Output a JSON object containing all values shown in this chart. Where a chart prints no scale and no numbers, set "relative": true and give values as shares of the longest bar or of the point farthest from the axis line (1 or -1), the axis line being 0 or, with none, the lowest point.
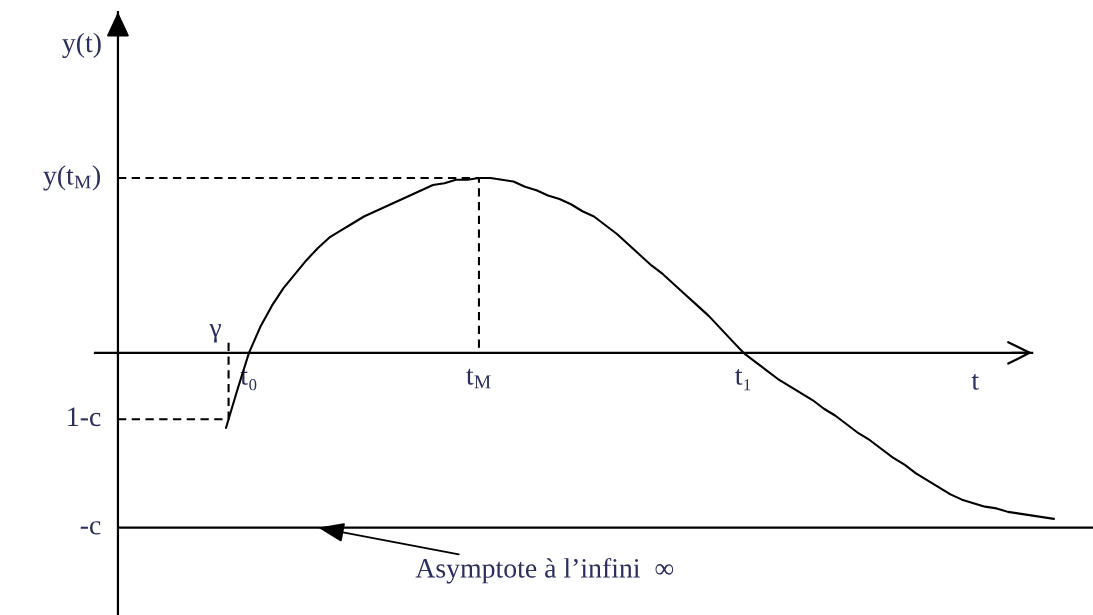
{
  "chart_data": {
    "type": "line",
    "relative": true,
    "color": "#000000",
    "categories": [
      null,
      null,
      "t₀",
      null,
      null,
      null,
      null,
      null,
      null,
      null,
      null,
      null,
      null,
      null,
      null,
      null,
      null,
      null,
      null,
      null,
      null,
      null,
      "t$_{M}$",
      null,
      null,
      null,
      null,
      null,
      null,
      null,
      null,
      null,
      null,
      null,
      null,
      null,
      null,
      null,
      null,
      null,
      null,
      null,
      null,
      null,
      null,
      "t₁",
      null,
      null,
      null,
      null,
      null,
      null,
      null,
      null,
      null,
      null,
      null,
      null,
      null,
      null,
      null,
      null,
      null,
      null,
      null,
      null,
      null,
      null,
      null,
      null,
      null,
      null,
      null
    ],
    "values": [
      -0.43,
      -0.21,
      0.0,
      0.15,
      0.27,
      0.37,
      0.45,
      0.53,
      0.6,
      0.66,
      0.7,
      0.74,
      0.78,
      0.81,
      0.84,
      0.87,
      0.9,
      0.93,
      0.96,
      0.97,
      0.99,
      0.99,
      1.0,
      1.0,
      0.99,
      0.98,
      0.95,
      0.93,
      0.9,
      0.88,
      0.85,
      0.81,
      0.78,
      0.73,
      0.68,
      0.62,
      0.56,
      0.5,
      0.45,
      0.39,
      0.33,
      0.27,
      0.21,
      0.14,
      0.07,
      0.0,
      -0.05,
      -0.1,
      -0.15,
      -0.19,
      -0.23,
      -0.27,
      -0.32,
      -0.36,
      -0.41,
      -0.46,
      -0.5,
      -0.55,
      -0.6,
      -0.64,
      -0.69,
      -0.73,
      -0.77,
      -0.81,
      -0.84,
      -0.86,
      -0.88,
      -0.89,
      -0.91,
      -0.92,
      -0.93,
      -0.94,
      -0.95
    ],
    "xlabel": "t",
    "ref_lines": [
      {
        "axis": "y",
        "value": 1.0,
        "label": "y(t$_{M}$)",
        "line_style": "dashed",
        "color": "#000000"
      },
      {
        "axis": "y",
        "value": -0.38,
        "label": "1-c",
        "line_style": "dashed",
        "color": "#000000"
      },
      {
        "axis": "y",
        "value": -1.0,
        "label": "-c",
        "line_style": "solid",
        "color": "#000000"
      }
    ],
    "annotations": [
      "y(t)",
      "γ",
      {
        "text": "Asymptote à l’infini  ∞",
        "y": -1.0
      }
    ]
  }
}
